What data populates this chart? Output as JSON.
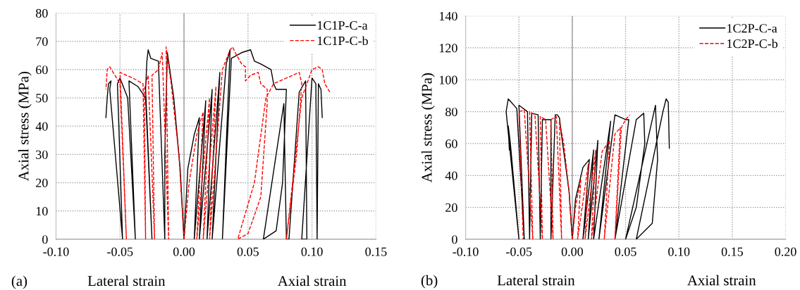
{
  "chart_data": [
    {
      "type": "line",
      "ylabel": "Axial stress (MPa)",
      "annotations": [
        "(a)",
        "Lateral strain",
        "Axial strain"
      ],
      "xlim": [
        -0.1,
        0.15
      ],
      "xticks": [
        {
          "value": -0.1,
          "label": "-0.10"
        },
        {
          "value": -0.05,
          "label": "-0.05"
        },
        {
          "value": 0,
          "label": "0.00"
        },
        {
          "value": 0.05,
          "label": "0.05"
        },
        {
          "value": 0.1,
          "label": "0.10"
        },
        {
          "value": 0.15,
          "label": "0.15"
        }
      ],
      "ylim": [
        0,
        80
      ],
      "yticks": [
        0,
        10,
        20,
        30,
        40,
        50,
        60,
        70,
        80
      ],
      "grid": true,
      "legend": "top right",
      "ref_lines": [
        {
          "axis": "x",
          "value": 0,
          "color": "#a0a0a0"
        }
      ],
      "series": [
        {
          "name": "1C1P-C-a",
          "color": "#000000",
          "line_style": "solid",
          "x": [
            0,
            0.003,
            0.008,
            0.012,
            0.008,
            0.017,
            0.012,
            0.022,
            0.018,
            0.028,
            0.022,
            0.033,
            0.036,
            0.03,
            0.037,
            0.045,
            0.052,
            0.055,
            0.06,
            0.068,
            0.07,
            0.072,
            0.08,
            0.077,
            0.072,
            0.062,
            0.072,
            0.078,
            0.08,
            0.082,
            0.09,
            0.095,
            0.096,
            0.092,
            0.1,
            0.103,
            0.104,
            0.105,
            0.107,
            0.108,
            null,
            0,
            -0.003,
            -0.008,
            -0.013,
            -0.015,
            -0.015,
            -0.019,
            -0.02,
            -0.026,
            -0.028,
            -0.029,
            -0.03,
            -0.025,
            -0.03,
            -0.036,
            -0.043,
            -0.038,
            -0.044,
            -0.05,
            -0.052,
            -0.048,
            -0.058,
            -0.057,
            -0.059,
            -0.06,
            -0.061
          ],
          "values": [
            0,
            25,
            37,
            43,
            0,
            49,
            0,
            53,
            0,
            59,
            0,
            62,
            67,
            0,
            64,
            66,
            67,
            63,
            62,
            60,
            55,
            53,
            53,
            20,
            3,
            0,
            30,
            48,
            0,
            0,
            52,
            56,
            0,
            0,
            57,
            55,
            0,
            55,
            53,
            43,
            null,
            0,
            25,
            50,
            66,
            30,
            0,
            50,
            63,
            64,
            67,
            63,
            53,
            0,
            50,
            54,
            56,
            0,
            50,
            57,
            55,
            0,
            53,
            56,
            55,
            50,
            43
          ]
        },
        {
          "name": "1C1P-C-b",
          "color": "#ff0000",
          "line_style": "dashed",
          "x": [
            0,
            0.004,
            0.01,
            0.015,
            0.01,
            0.02,
            0.015,
            0.025,
            0.02,
            0.03,
            0.036,
            0.038,
            0.04,
            0.045,
            0.048,
            0.048,
            0.052,
            0.058,
            0.06,
            0.065,
            0.065,
            0.06,
            0.05,
            0.042,
            0.055,
            0.064,
            0.07,
            0.085,
            0.09,
            0.092,
            0.088,
            0.08,
            0.092,
            0.1,
            0.105,
            0.108,
            0.11,
            0.114,
            null,
            0,
            -0.004,
            -0.01,
            -0.014,
            -0.012,
            -0.017,
            -0.02,
            -0.025,
            -0.023,
            -0.028,
            -0.031,
            -0.03,
            -0.032,
            -0.04,
            -0.05,
            -0.045,
            -0.05,
            -0.058,
            -0.06,
            -0.061
          ],
          "values": [
            0,
            20,
            37,
            45,
            0,
            50,
            0,
            54,
            0,
            60,
            67,
            68,
            66,
            62,
            61,
            56,
            58,
            59,
            55,
            53,
            48,
            15,
            2,
            0,
            20,
            50,
            55,
            58,
            59,
            55,
            30,
            0,
            50,
            60,
            61,
            60,
            55,
            52,
            null,
            0,
            30,
            55,
            68,
            0,
            66,
            60,
            58,
            0,
            58,
            53,
            0,
            55,
            57,
            59,
            0,
            55,
            61,
            60,
            53
          ]
        }
      ]
    },
    {
      "type": "line",
      "ylabel": "Axial stress (MPa)",
      "annotations": [
        "(b)",
        "Lateral strain",
        "Axial strain"
      ],
      "xlim": [
        -0.1,
        0.2
      ],
      "xticks": [
        {
          "value": -0.1,
          "label": "-0.10"
        },
        {
          "value": -0.05,
          "label": "-0.05"
        },
        {
          "value": 0,
          "label": "0.00"
        },
        {
          "value": 0.05,
          "label": "0.05"
        },
        {
          "value": 0.1,
          "label": "0.10"
        },
        {
          "value": 0.15,
          "label": "0.15"
        },
        {
          "value": 0.2,
          "label": "0.20"
        }
      ],
      "ylim": [
        0,
        140
      ],
      "yticks": [
        0,
        20,
        40,
        60,
        80,
        100,
        120,
        140
      ],
      "grid": true,
      "legend": "top right",
      "ref_lines": [
        {
          "axis": "x",
          "value": 0,
          "color": "#a0a0a0"
        }
      ],
      "series": [
        {
          "name": "1C2P-C-a",
          "color": "#000000",
          "line_style": "solid",
          "x": [
            0,
            0.003,
            0.01,
            0.016,
            0.01,
            0.02,
            0.015,
            0.024,
            0.02,
            0.036,
            0.025,
            0.04,
            0.05,
            0.053,
            0.04,
            0.06,
            0.067,
            0.068,
            0.06,
            0.05,
            0.07,
            0.078,
            0.08,
            0.075,
            0.06,
            0.085,
            0.088,
            0.09,
            0.091,
            null,
            0,
            -0.003,
            -0.01,
            -0.012,
            -0.014,
            -0.016,
            -0.02,
            -0.02,
            -0.028,
            -0.03,
            -0.032,
            -0.038,
            -0.04,
            -0.042,
            -0.05,
            -0.045,
            -0.052,
            -0.06,
            -0.062,
            -0.05,
            -0.058,
            -0.06,
            -0.059
          ],
          "values": [
            0,
            25,
            45,
            50,
            0,
            56,
            0,
            62,
            0,
            74,
            0,
            78,
            75,
            75,
            0,
            75,
            79,
            60,
            20,
            0,
            60,
            84,
            50,
            10,
            0,
            80,
            88,
            86,
            57,
            null,
            0,
            30,
            65,
            76,
            78,
            78,
            0,
            75,
            75,
            0,
            78,
            79,
            0,
            80,
            84,
            0,
            82,
            88,
            80,
            0,
            60,
            71,
            56
          ]
        },
        {
          "name": "1C2P-C-b",
          "color": "#ff0000",
          "line_style": "dashed",
          "x": [
            0,
            0.003,
            0.008,
            0.005,
            0.015,
            0.012,
            0.022,
            0.018,
            0.028,
            0.035,
            0.03,
            0.04,
            0.045,
            0.04,
            0.046,
            0.05,
            0.054,
            null,
            0,
            -0.003,
            -0.008,
            -0.012,
            -0.01,
            -0.015,
            -0.02,
            -0.018,
            -0.025,
            -0.03,
            -0.028,
            -0.035,
            -0.04,
            -0.037,
            -0.045,
            -0.05,
            -0.046
          ],
          "values": [
            0,
            20,
            38,
            0,
            47,
            0,
            56,
            0,
            55,
            62,
            0,
            66,
            70,
            0,
            70,
            75,
            78,
            null,
            0,
            30,
            60,
            74,
            0,
            77,
            75,
            0,
            75,
            77,
            0,
            78,
            80,
            0,
            81,
            80,
            0
          ]
        }
      ]
    }
  ]
}
